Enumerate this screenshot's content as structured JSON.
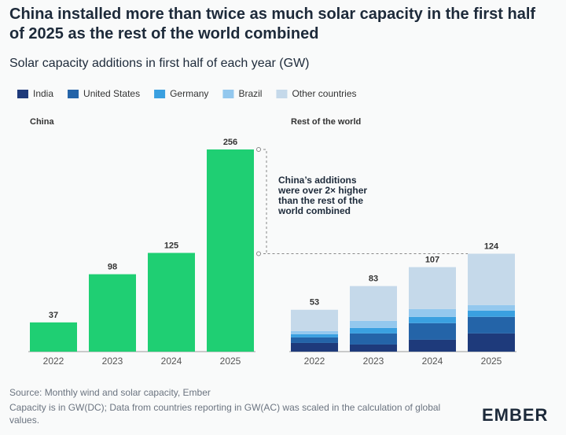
{
  "title": "China installed more than twice as much solar capacity in the first half of 2025 as the rest of the world combined",
  "subtitle": "Solar capacity additions in first half of each year (GW)",
  "chart_data": [
    {
      "type": "bar",
      "title": "China",
      "categories": [
        "2022",
        "2023",
        "2024",
        "2025"
      ],
      "values": [
        37,
        98,
        125,
        256
      ],
      "color": "#1fcf73",
      "ylim": [
        0,
        256
      ]
    },
    {
      "type": "stacked-bar",
      "title": "Rest of the world",
      "categories": [
        "2022",
        "2023",
        "2024",
        "2025"
      ],
      "ylim": [
        0,
        256
      ],
      "series": [
        {
          "name": "India",
          "color": "#1e3a7b",
          "values": [
            11,
            9,
            15,
            23
          ]
        },
        {
          "name": "United States",
          "color": "#2464a8",
          "values": [
            7,
            14,
            21,
            21
          ]
        },
        {
          "name": "Germany",
          "color": "#3aa0e0",
          "values": [
            4,
            7,
            8,
            8
          ]
        },
        {
          "name": "Brazil",
          "color": "#93c8ee",
          "values": [
            4,
            9,
            10,
            7
          ]
        },
        {
          "name": "Other countries",
          "color": "#c5d9ea",
          "values": [
            27,
            44,
            53,
            65
          ]
        }
      ],
      "totals": [
        53,
        83,
        107,
        124
      ],
      "annotation": "China’s additions were over 2× higher than the rest of the world combined"
    }
  ],
  "source": "Source: Monthly wind and solar capacity, Ember",
  "note": "Capacity is in GW(DC); Data from countries reporting in GW(AC) was scaled in the calculation of global values.",
  "logo": "EMBER"
}
